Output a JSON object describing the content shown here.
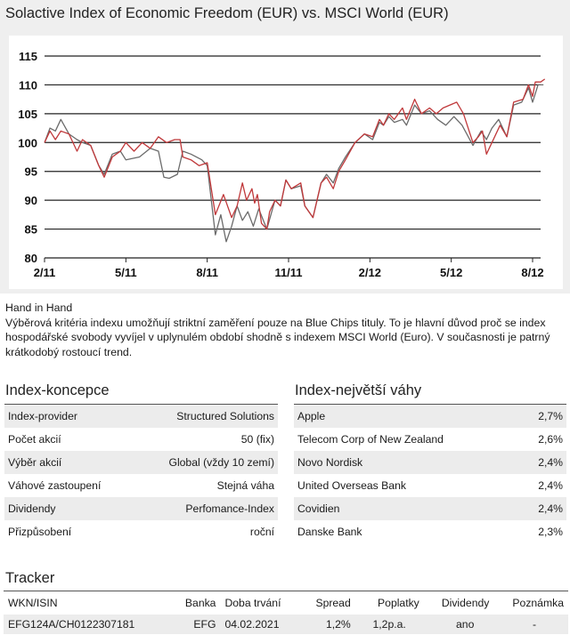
{
  "title": "Solactive Index of Economic Freedom (EUR) vs. MSCI World (EUR)",
  "chart_data": {
    "type": "line",
    "title": "Solactive Index of Economic Freedom (EUR) vs. MSCI World (EUR)",
    "xlabel": "",
    "ylabel": "",
    "x_unit": "months since 2/11",
    "xlim": [
      0,
      18.5
    ],
    "ylim": [
      80,
      115
    ],
    "yticks": [
      80,
      85,
      90,
      95,
      100,
      105,
      110,
      115
    ],
    "xticks": [
      {
        "v": 0,
        "label": "2/11"
      },
      {
        "v": 3,
        "label": "5/11"
      },
      {
        "v": 6,
        "label": "8/11"
      },
      {
        "v": 9,
        "label": "11/11"
      },
      {
        "v": 12,
        "label": "2/12"
      },
      {
        "v": 15,
        "label": "5/12"
      },
      {
        "v": 18,
        "label": "8/12"
      }
    ],
    "grid": true,
    "series": [
      {
        "name": "Solactive Index of Economic Freedom (EUR)",
        "color": "#c0393b",
        "x": [
          0,
          0.2,
          0.4,
          0.6,
          0.9,
          1.2,
          1.4,
          1.7,
          2.0,
          2.2,
          2.5,
          2.8,
          3.0,
          3.3,
          3.6,
          3.9,
          4.2,
          4.5,
          4.8,
          5.0,
          5.1,
          5.4,
          5.7,
          6.0,
          6.3,
          6.6,
          6.9,
          7.1,
          7.3,
          7.45,
          7.65,
          7.75,
          7.85,
          8.0,
          8.2,
          8.3,
          8.5,
          8.7,
          8.9,
          9.1,
          9.45,
          9.6,
          9.9,
          10.2,
          10.4,
          10.65,
          10.85,
          11.1,
          11.45,
          11.8,
          12.1,
          12.35,
          12.5,
          12.7,
          12.9,
          13.2,
          13.35,
          13.65,
          13.9,
          14.2,
          14.45,
          14.7,
          15.2,
          15.45,
          15.8,
          16.0,
          16.15,
          16.3,
          16.6,
          16.8,
          17.05,
          17.3,
          17.65,
          17.85,
          18.0,
          18.1,
          18.3,
          18.45
        ],
        "y": [
          100,
          102,
          100.5,
          102,
          101.5,
          98.5,
          100.5,
          99.5,
          96,
          94,
          97.5,
          98.5,
          100,
          98.5,
          100,
          99,
          101,
          100,
          100.5,
          100.5,
          97.5,
          97,
          96,
          96.5,
          87.5,
          91,
          87,
          89,
          93,
          90,
          92,
          89.5,
          91,
          86,
          85,
          88,
          90,
          89,
          93.5,
          92,
          93,
          89,
          87,
          93,
          94,
          92,
          95,
          97,
          100,
          101.5,
          101,
          104,
          103,
          105,
          104,
          106,
          104,
          107.5,
          105,
          106,
          105,
          106,
          107,
          105,
          100,
          101,
          102,
          98,
          101,
          103,
          101,
          107,
          107.5,
          110,
          108,
          110.5,
          110.5,
          111
        ]
      },
      {
        "name": "MSCI World (EUR)",
        "color": "#6b6b6b",
        "x": [
          0,
          0.2,
          0.4,
          0.6,
          0.9,
          1.2,
          1.4,
          1.7,
          2.0,
          2.2,
          2.5,
          2.8,
          3.0,
          3.5,
          3.9,
          4.2,
          4.4,
          4.6,
          4.9,
          5.1,
          5.4,
          5.8,
          6.0,
          6.3,
          6.5,
          6.7,
          6.9,
          7.1,
          7.3,
          7.5,
          7.7,
          7.9,
          8.2,
          8.5,
          8.7,
          8.9,
          9.1,
          9.45,
          9.6,
          9.9,
          10.2,
          10.4,
          10.65,
          10.85,
          11.1,
          11.45,
          11.8,
          12.1,
          12.35,
          12.5,
          12.7,
          12.9,
          13.2,
          13.35,
          13.65,
          13.9,
          14.2,
          14.5,
          14.8,
          15.1,
          15.4,
          15.8,
          16.1,
          16.3,
          16.5,
          16.75,
          17.05,
          17.3,
          17.6,
          17.85,
          18.0,
          18.2,
          18.4
        ],
        "y": [
          100,
          102.5,
          102,
          104,
          101.5,
          100.5,
          100,
          99.5,
          96,
          94.5,
          98,
          98.5,
          97,
          97.5,
          99,
          98.5,
          94,
          93.8,
          94.5,
          98.5,
          98,
          97,
          96,
          84,
          87.5,
          82.8,
          85.5,
          89,
          86.5,
          88,
          85.5,
          88.5,
          85,
          90,
          89,
          93.5,
          92,
          92.5,
          89,
          87,
          93,
          94.5,
          93,
          95.5,
          97.5,
          100,
          101.5,
          100.5,
          103.5,
          103,
          104.5,
          103.5,
          104,
          103,
          106.5,
          105,
          105.5,
          104,
          103,
          104.5,
          103,
          99.5,
          102,
          100.5,
          102.5,
          104,
          101,
          106.5,
          107,
          109.5,
          107,
          110,
          110
        ]
      }
    ]
  },
  "intro": {
    "heading": "Hand in Hand",
    "text": "Výběrová kritéria indexu umožňují striktní zaměření pouze na Blue Chips tituly. To je hlavní důvod proč se index hospodářské svobody vyvíjel v uplynulém období shodně s indexem MSCI World (Euro). V současnosti je patrný krátkodobý rostoucí trend."
  },
  "concept": {
    "title": "Index-koncepce",
    "rows": [
      {
        "k": "Index-provider",
        "v": "Structured Solutions"
      },
      {
        "k": "Počet akcií",
        "v": "50 (fix)"
      },
      {
        "k": "Výběr akcií",
        "v": "Global (vždy 10 zemí)"
      },
      {
        "k": "Váhové zastoupení",
        "v": "Stejná váha"
      },
      {
        "k": "Dividendy",
        "v": "Perfomance-Index"
      },
      {
        "k": "Přizpůsobení",
        "v": "roční"
      }
    ]
  },
  "weights": {
    "title": "Index-největší váhy",
    "rows": [
      {
        "k": "Apple",
        "v": "2,7%"
      },
      {
        "k": "Telecom Corp of New Zealand",
        "v": "2,6%"
      },
      {
        "k": "Novo Nordisk",
        "v": "2,4%"
      },
      {
        "k": "United Overseas Bank",
        "v": "2,4%"
      },
      {
        "k": "Covidien",
        "v": "2,4%"
      },
      {
        "k": "Danske Bank",
        "v": "2,3%"
      }
    ]
  },
  "tracker": {
    "title": "Tracker",
    "headers": [
      "WKN/ISIN",
      "Banka",
      "Doba trvání",
      "Spread",
      "Poplatky",
      "Dividendy",
      "Poznámka"
    ],
    "row": [
      "EFG124A/CH0122307181",
      "EFG",
      "04.02.2021",
      "1,2%",
      "1,2p.a.",
      "ano",
      "-"
    ]
  }
}
